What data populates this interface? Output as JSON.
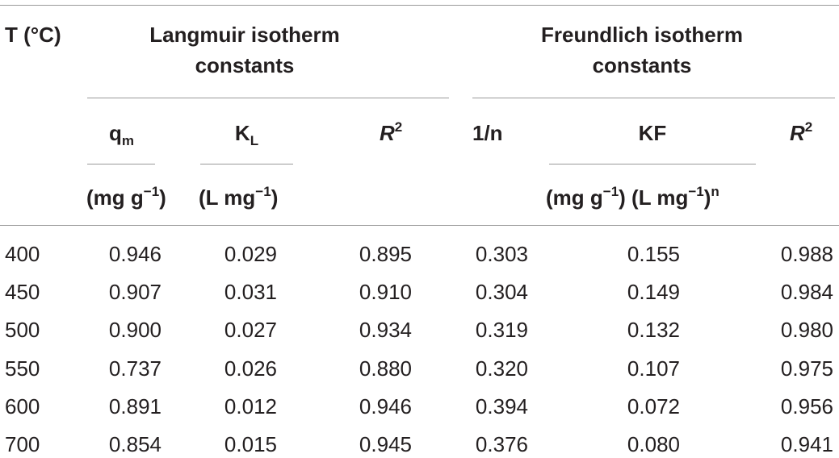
{
  "headers": {
    "temp": "T (°C)",
    "langmuir_line1": "Langmuir isotherm",
    "langmuir_line2": "constants",
    "freundlich_line1": "Freundlich isotherm",
    "freundlich_line2": "constants",
    "qm_main": "q",
    "qm_sub": "m",
    "kl_main": "K",
    "kl_sub": "L",
    "r2_main": "R",
    "r2_sup": "2",
    "one_over_n": "1/n",
    "kf": "KF",
    "qm_unit_a": "(mg g",
    "qm_unit_sup": "−1",
    "qm_unit_b": ")",
    "kl_unit_a": "(L mg",
    "kl_unit_sup": "−1",
    "kl_unit_b": ")",
    "kf_unit_a": "(mg g",
    "kf_unit_sup1": "−1",
    "kf_unit_b": ") (L mg",
    "kf_unit_sup2": "−1",
    "kf_unit_c": ")",
    "kf_unit_sup3": "n"
  },
  "rows": [
    [
      "400",
      "0.946",
      "0.029",
      "0.895",
      "0.303",
      "0.155",
      "0.988"
    ],
    [
      "450",
      "0.907",
      "0.031",
      "0.910",
      "0.304",
      "0.149",
      "0.984"
    ],
    [
      "500",
      "0.900",
      "0.027",
      "0.934",
      "0.319",
      "0.132",
      "0.980"
    ],
    [
      "550",
      "0.737",
      "0.026",
      "0.880",
      "0.320",
      "0.107",
      "0.975"
    ],
    [
      "600",
      "0.891",
      "0.012",
      "0.946",
      "0.394",
      "0.072",
      "0.956"
    ],
    [
      "700",
      "0.854",
      "0.015",
      "0.945",
      "0.376",
      "0.080",
      "0.941"
    ]
  ]
}
